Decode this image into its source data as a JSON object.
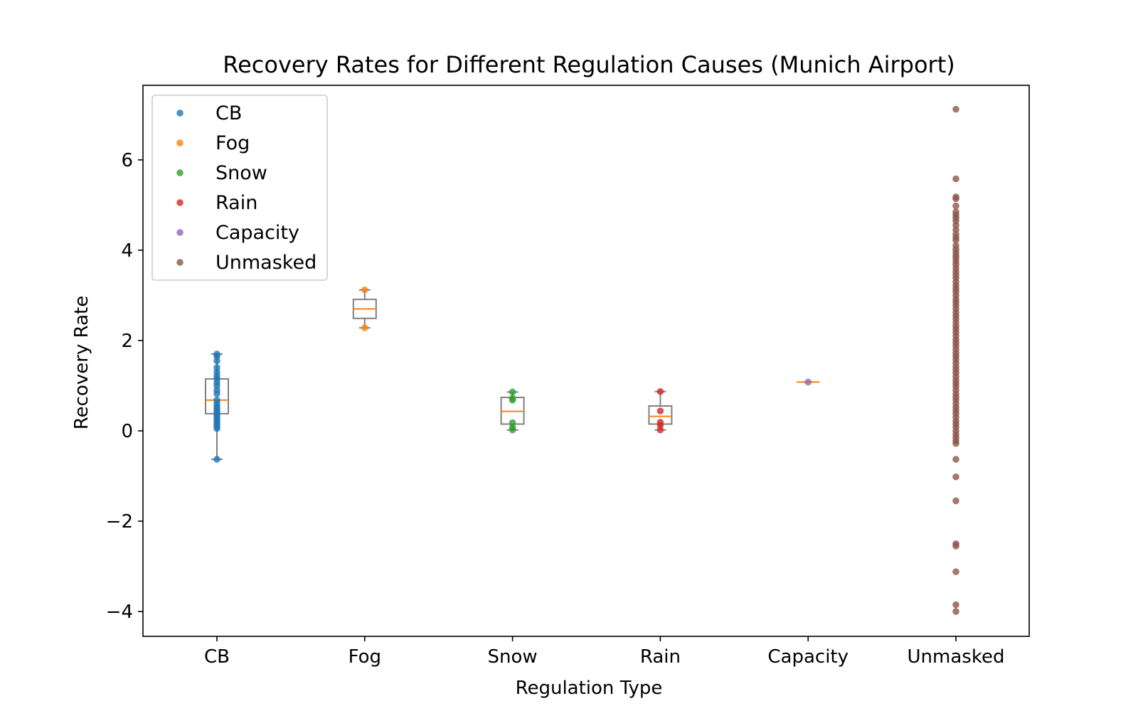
{
  "chart_data": {
    "type": "scatter",
    "title": "Recovery Rates for Different Regulation Causes (Munich Airport)",
    "xlabel": "Regulation Type",
    "ylabel": "Recovery Rate",
    "categories": [
      "CB",
      "Fog",
      "Snow",
      "Rain",
      "Capacity",
      "Unmasked"
    ],
    "ylim": [
      -4.55,
      7.65
    ],
    "yticks": [
      -4,
      -2,
      0,
      2,
      4,
      6
    ],
    "ytick_labels": [
      "−4",
      "−2",
      "0",
      "2",
      "4",
      "6"
    ],
    "grid": false,
    "legend_position": "top-left",
    "box_color": "#808080",
    "median_color": "#ff7f0e",
    "series": [
      {
        "name": "CB",
        "color": "#1f77b4",
        "values": [
          -0.63,
          0.05,
          0.1,
          0.15,
          0.2,
          0.25,
          0.3,
          0.35,
          0.4,
          0.45,
          0.5,
          0.55,
          0.62,
          0.68,
          0.82,
          0.9,
          1.0,
          1.07,
          1.15,
          1.22,
          1.3,
          1.4,
          1.55,
          1.65,
          1.7
        ],
        "box": {
          "whislo": -0.63,
          "q1": 0.38,
          "med": 0.68,
          "q3": 1.15,
          "whishi": 1.7
        }
      },
      {
        "name": "Fog",
        "color": "#ff7f0e",
        "values": [
          2.28,
          3.12
        ],
        "box": {
          "whislo": 2.28,
          "q1": 2.49,
          "med": 2.7,
          "q3": 2.91,
          "whishi": 3.12
        }
      },
      {
        "name": "Snow",
        "color": "#2ca02c",
        "values": [
          0.02,
          0.08,
          0.18,
          0.68,
          0.72,
          0.86
        ],
        "box": {
          "whislo": 0.02,
          "q1": 0.15,
          "med": 0.43,
          "q3": 0.74,
          "whishi": 0.86
        }
      },
      {
        "name": "Rain",
        "color": "#d62728",
        "values": [
          0.02,
          0.12,
          0.19,
          0.44,
          0.87
        ],
        "box": {
          "whislo": 0.02,
          "q1": 0.15,
          "med": 0.32,
          "q3": 0.55,
          "whishi": 0.87
        }
      },
      {
        "name": "Capacity",
        "color": "#9467bd",
        "values": [
          1.08
        ],
        "box": {
          "whislo": 1.08,
          "q1": 1.08,
          "med": 1.08,
          "q3": 1.08,
          "whishi": 1.08
        }
      },
      {
        "name": "Unmasked",
        "color": "#8c564b",
        "values": [
          7.12,
          5.58,
          5.18,
          5.14,
          4.98,
          4.85,
          4.78,
          4.72,
          4.65,
          4.55,
          4.45,
          4.35,
          4.28,
          4.22,
          4.1,
          4.02,
          3.95,
          3.88,
          3.82,
          3.75,
          3.68,
          3.6,
          3.52,
          3.45,
          3.38,
          3.3,
          3.22,
          3.15,
          3.08,
          3.0,
          2.92,
          2.85,
          2.78,
          2.7,
          2.62,
          2.55,
          2.48,
          2.4,
          2.32,
          2.25,
          2.18,
          2.1,
          2.02,
          1.95,
          1.88,
          1.8,
          1.72,
          1.65,
          1.58,
          1.5,
          1.42,
          1.35,
          1.28,
          1.2,
          1.12,
          1.05,
          0.98,
          0.9,
          0.82,
          0.75,
          0.68,
          0.6,
          0.52,
          0.45,
          0.38,
          0.3,
          0.22,
          0.15,
          0.08,
          0.0,
          -0.08,
          -0.15,
          -0.22,
          -0.28,
          -0.63,
          -1.02,
          -1.55,
          -2.5,
          -2.55,
          -3.12,
          -3.85,
          -4.0
        ],
        "box": null
      }
    ]
  }
}
